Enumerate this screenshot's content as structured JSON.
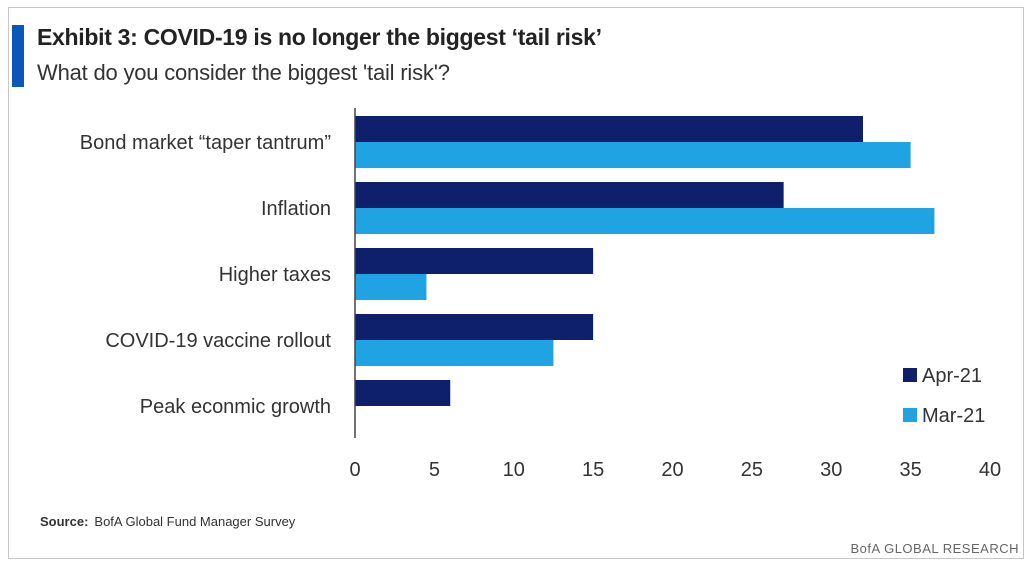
{
  "header": {
    "title": "Exhibit 3: COVID-19 is no longer the biggest ‘tail risk’",
    "subtitle": "What do you consider the biggest 'tail risk'?"
  },
  "footer": {
    "source_label": "Source:",
    "source_text": "BofA Global Fund Manager Survey",
    "brand": "BofA GLOBAL RESEARCH"
  },
  "colors": {
    "accent": "#0b57b9",
    "apr21": "#0e1f6b",
    "mar21": "#1fa3e3"
  },
  "chart_data": {
    "type": "bar",
    "orientation": "horizontal",
    "categories": [
      "Bond market “taper tantrum”",
      "Inflation",
      "Higher taxes",
      "COVID-19 vaccine rollout",
      "Peak econmic growth"
    ],
    "series": [
      {
        "name": "Apr-21",
        "color": "#0e1f6b",
        "values": [
          32,
          27,
          15,
          15,
          6
        ]
      },
      {
        "name": "Mar-21",
        "color": "#1fa3e3",
        "values": [
          35,
          36.5,
          4.5,
          12.5,
          null
        ]
      }
    ],
    "xlim": [
      0,
      40
    ],
    "xticks": [
      0,
      5,
      10,
      15,
      20,
      25,
      30,
      35,
      40
    ],
    "grid": false,
    "legend_position": "bottom-right"
  }
}
